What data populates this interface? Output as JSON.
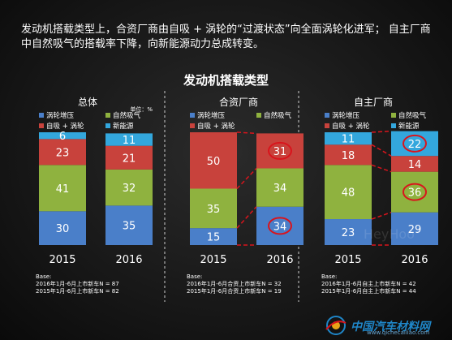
{
  "headline": "发动机搭载类型上，合资厂商由自吸 + 涡轮的“过渡状态”向全面涡轮化进军； 自主厂商中自然吸气的搭载率下降，向新能源动力总成转变。",
  "subtitle": "发动机搭载类型",
  "watermark": "HeyHoo",
  "logo_text": "中国汽车材料网",
  "logo_url": "www.qichecailiao.com",
  "colors": {
    "turbo": "#4a7fc9",
    "natural": "#8fb23f",
    "hybrid": "#c8423c",
    "newenergy": "#33a7dd",
    "highlight": "#d9141c"
  },
  "chart_data": [
    {
      "type": "bar",
      "stacked": true,
      "title": "总体",
      "unit": "单位：%",
      "categories": [
        "2015",
        "2016"
      ],
      "series": [
        {
          "name": "涡轮增压",
          "values": [
            30,
            35
          ]
        },
        {
          "name": "自然吸气",
          "values": [
            41,
            32
          ]
        },
        {
          "name": "自吸 + 涡轮",
          "values": [
            23,
            21
          ]
        },
        {
          "name": "新能源",
          "values": [
            6,
            11
          ]
        }
      ],
      "base_label": "Base:",
      "base_lines": [
        "2016年1月-6月上市新车N = 87",
        "2015年1月-6月上市新车N = 82"
      ]
    },
    {
      "type": "bar",
      "stacked": true,
      "title": "合资厂商",
      "categories": [
        "2015",
        "2016"
      ],
      "series": [
        {
          "name": "涡轮增压",
          "values": [
            15,
            34
          ]
        },
        {
          "name": "自然吸气",
          "values": [
            35,
            34
          ]
        },
        {
          "name": "自吸 + 涡轮",
          "values": [
            50,
            31
          ]
        }
      ],
      "highlighted": [
        "2016:涡轮增压",
        "2016:自吸 + 涡轮"
      ],
      "base_label": "Base:",
      "base_lines": [
        "2016年1月-6月合资上市新车N = 32",
        "2015年1月-6月合资上市新车N = 19"
      ]
    },
    {
      "type": "bar",
      "stacked": true,
      "title": "自主厂商",
      "categories": [
        "2015",
        "2016"
      ],
      "series": [
        {
          "name": "涡轮增压",
          "values": [
            23,
            29
          ]
        },
        {
          "name": "自然吸气",
          "values": [
            48,
            36
          ]
        },
        {
          "name": "自吸 + 涡轮",
          "values": [
            18,
            14
          ]
        },
        {
          "name": "新能源",
          "values": [
            11,
            22
          ]
        }
      ],
      "highlighted": [
        "2016:自然吸气",
        "2016:新能源"
      ],
      "base_label": "Base:",
      "base_lines": [
        "2016年1月-6月自主上市新车N = 42",
        "2015年1月-6月自主上市新车N = 44"
      ]
    }
  ]
}
